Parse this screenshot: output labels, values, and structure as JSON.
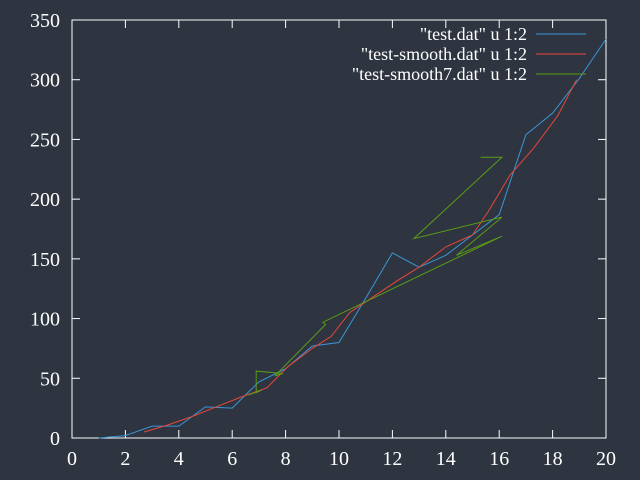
{
  "chart_data": {
    "type": "line",
    "title": "",
    "xlabel": "",
    "ylabel": "",
    "xlim": [
      0,
      20
    ],
    "ylim": [
      0,
      350
    ],
    "xticks": [
      0,
      2,
      4,
      6,
      8,
      10,
      12,
      14,
      16,
      18,
      20
    ],
    "yticks": [
      0,
      50,
      100,
      150,
      200,
      250,
      300,
      350
    ],
    "grid": false,
    "legend_position": "top-right",
    "axis_color": "#ffffff",
    "series": [
      {
        "name": "\"test.dat\" u 1:2",
        "color": "#3a97d6",
        "points": [
          [
            1,
            0
          ],
          [
            2,
            2
          ],
          [
            3,
            10
          ],
          [
            4,
            10
          ],
          [
            5,
            26
          ],
          [
            6,
            25
          ],
          [
            7,
            47
          ],
          [
            8,
            58
          ],
          [
            9,
            77
          ],
          [
            10,
            80
          ],
          [
            11,
            117
          ],
          [
            12,
            155
          ],
          [
            13,
            143
          ],
          [
            14,
            153
          ],
          [
            15,
            170
          ],
          [
            16,
            187
          ],
          [
            17,
            254
          ],
          [
            18,
            272
          ],
          [
            19,
            301
          ],
          [
            20,
            334
          ]
        ]
      },
      {
        "name": "\"test-smooth.dat\" u 1:2",
        "color": "#e8473a",
        "points": [
          [
            2.7,
            5
          ],
          [
            3.6,
            11
          ],
          [
            4.5,
            18
          ],
          [
            5.5,
            27
          ],
          [
            6.3,
            34
          ],
          [
            7.3,
            42
          ],
          [
            8.1,
            60
          ],
          [
            9,
            75
          ],
          [
            9.7,
            85
          ],
          [
            10.4,
            105
          ],
          [
            11.4,
            120
          ],
          [
            12.2,
            132
          ],
          [
            13,
            143
          ],
          [
            14,
            160
          ],
          [
            15,
            170
          ],
          [
            15.6,
            190
          ],
          [
            16.4,
            220
          ],
          [
            17.3,
            243
          ],
          [
            18.2,
            270
          ],
          [
            18.9,
            300
          ]
        ]
      },
      {
        "name": "\"test-smooth7.dat\" u 1:2",
        "color": "#5a9b16",
        "points": [
          [
            6.6,
            36
          ],
          [
            7.1,
            40
          ],
          [
            6.9,
            38
          ],
          [
            6.9,
            56
          ],
          [
            7.9,
            54
          ],
          [
            7.6,
            52
          ],
          [
            9.5,
            95
          ],
          [
            9.4,
            97
          ],
          [
            16.1,
            169
          ],
          [
            14.4,
            153
          ],
          [
            16.1,
            185
          ],
          [
            12.8,
            167
          ],
          [
            16.1,
            235
          ],
          [
            15.3,
            235
          ]
        ]
      }
    ]
  }
}
